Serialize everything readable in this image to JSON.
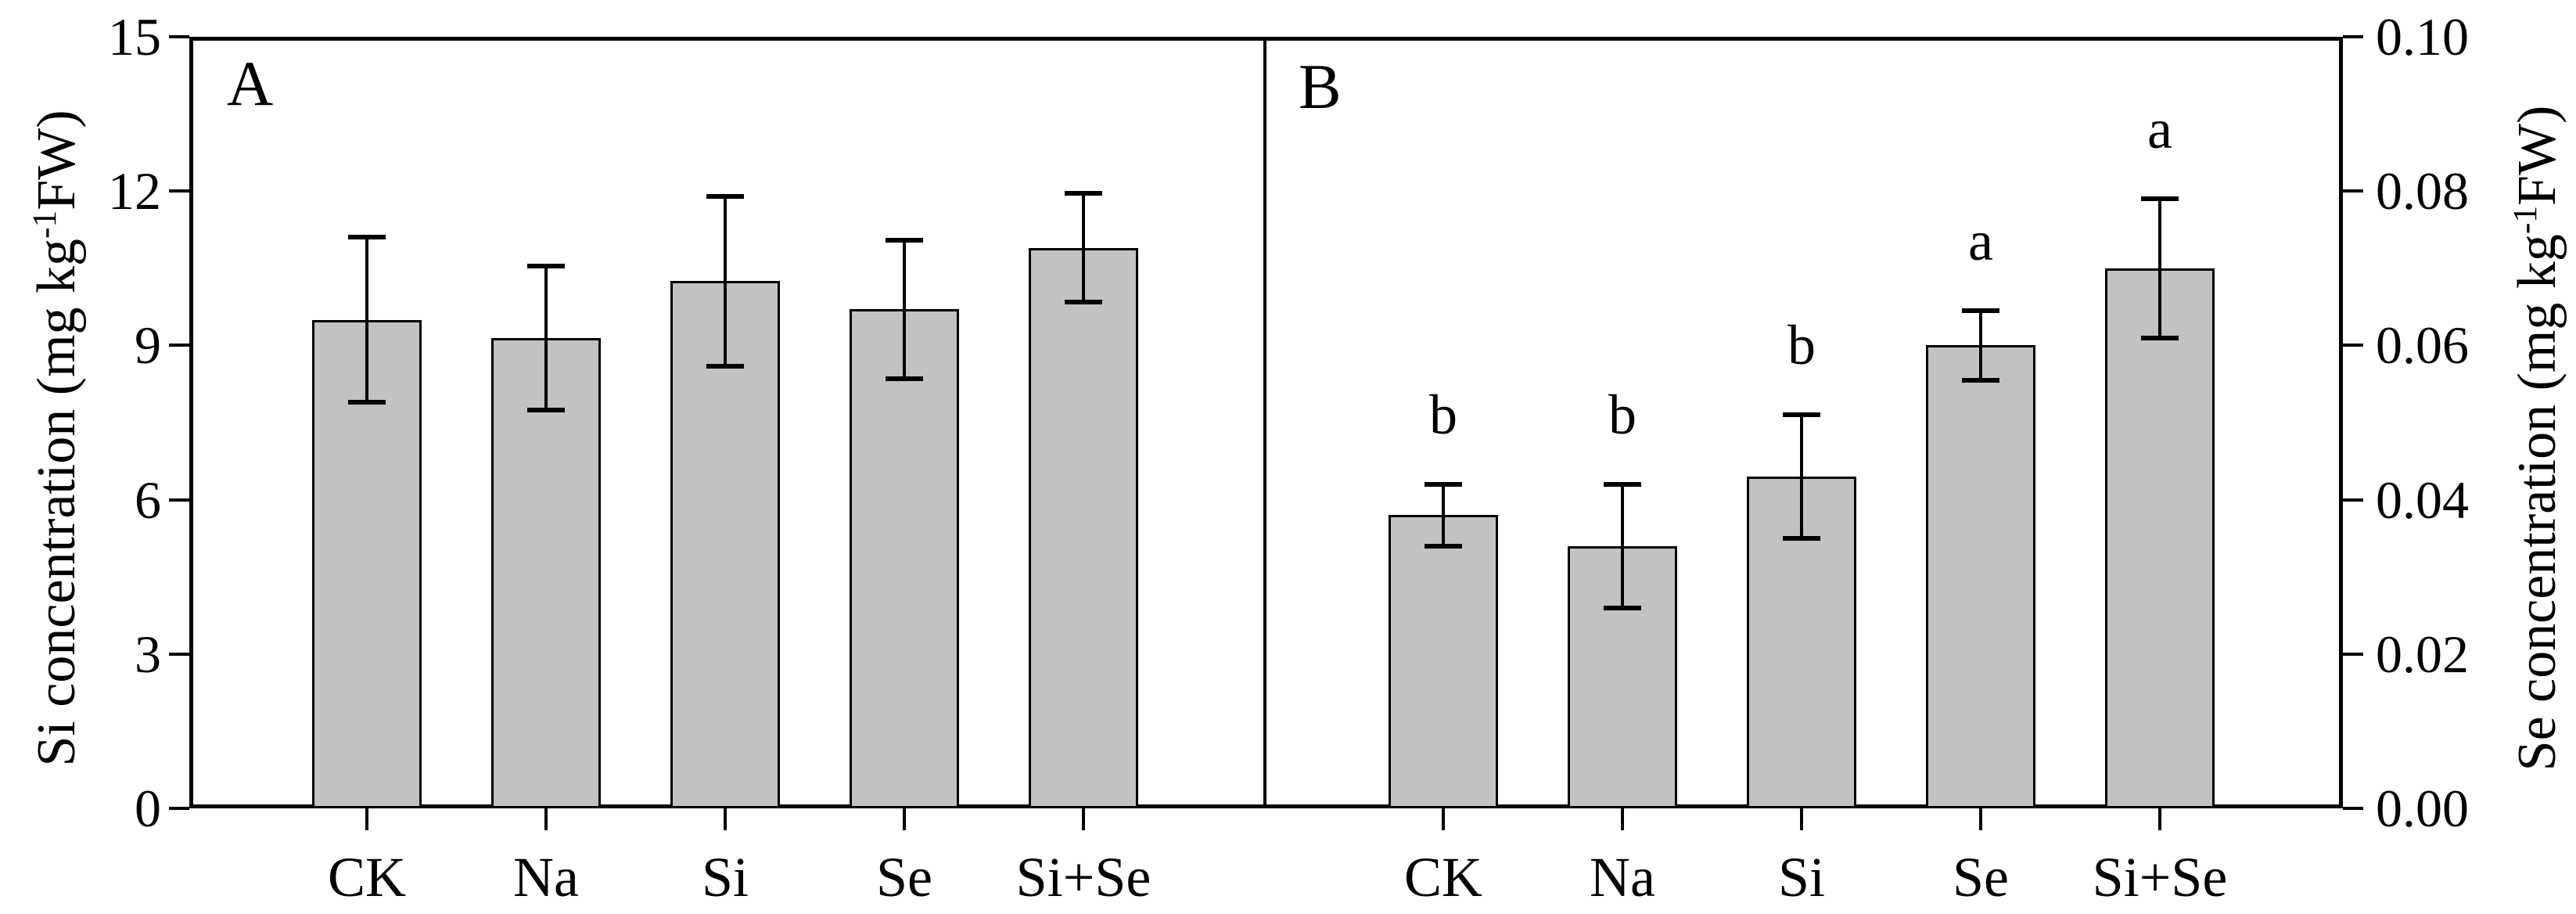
{
  "figure": {
    "background": "#ffffff",
    "frame_color": "#000000"
  },
  "colors": {
    "bar_fill": "#c2c2c2",
    "bar_border": "#000000",
    "error_color": "#000000",
    "text_color": "#000000"
  },
  "chart_data": [
    {
      "type": "bar",
      "panel_label": "A",
      "axis_side": "left",
      "ylabel_prefix": "Si concentration (mg kg",
      "ylabel_sup": "-1",
      "ylabel_suffix": "FW)",
      "ylim": [
        0,
        15
      ],
      "yticks": [
        "0",
        "3",
        "6",
        "9",
        "12",
        "15"
      ],
      "grid": false,
      "categories": [
        "CK",
        "Na",
        "Si",
        "Se",
        "Si+Se"
      ],
      "values": [
        9.5,
        9.15,
        10.25,
        9.7,
        10.9
      ],
      "errors": [
        1.6,
        1.4,
        1.65,
        1.35,
        1.05
      ],
      "letters": []
    },
    {
      "type": "bar",
      "panel_label": "B",
      "axis_side": "right",
      "ylabel_prefix": "Se concentration (mg kg",
      "ylabel_sup": "-1",
      "ylabel_suffix": "FW)",
      "ylim": [
        0,
        0.1
      ],
      "yticks": [
        "0.00",
        "0.02",
        "0.04",
        "0.06",
        "0.08",
        "0.10"
      ],
      "grid": false,
      "categories": [
        "CK",
        "Na",
        "Si",
        "Se",
        "Si+Se"
      ],
      "values": [
        0.038,
        0.034,
        0.043,
        0.06,
        0.07
      ],
      "errors": [
        0.004,
        0.008,
        0.008,
        0.0045,
        0.009
      ],
      "letters": [
        "b",
        "b",
        "b",
        "a",
        "a"
      ]
    }
  ]
}
